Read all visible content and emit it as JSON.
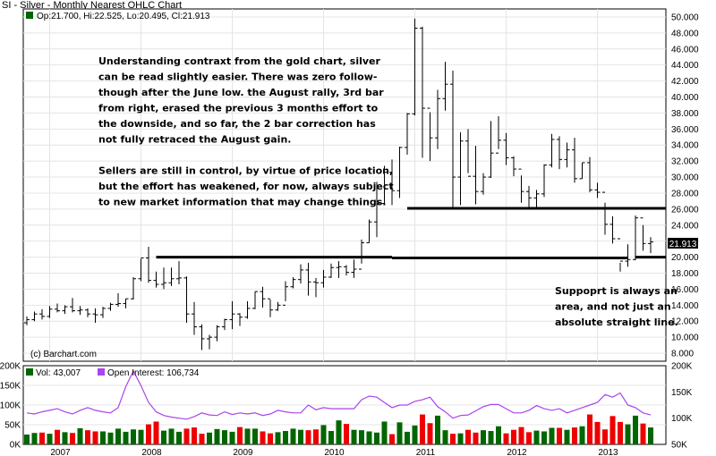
{
  "title": "SI - Silver - Monthly Nearest OHLC Chart",
  "ohlc_summary": "Op:21.700, Hi:22.525, Lo:20.495, Cl:21.913",
  "last_price": "21.913",
  "copyright": "(c) Barchart.com",
  "notes": {
    "main": [
      "Understanding contraxt from the gold chart, silver",
      "can be read slightly easier.  There was zero follow-",
      "though after the June low.  the August rally, 3rd bar",
      "from right, erased the previous 3 months effort to",
      "the downside,  and so far, the 2 bar correction has",
      "not fully retraced the August gain.",
      "",
      "Sellers are still in control, by virtue of price location,",
      "but the effort has weakened, for now,  always subject",
      "to new market information that may change things."
    ],
    "support": [
      "Suppoprt is always an",
      "area, and not just an",
      "absolute straight line."
    ]
  },
  "volume_legend": {
    "vol": "Vol: 43,007",
    "oi": "Open Interest: 106,734"
  },
  "colors": {
    "up": "#006600",
    "down": "#ee0000",
    "oi": "#aa44ee",
    "line": "#000000"
  },
  "chart_data": [
    {
      "type": "ohlc",
      "title": "SI - Silver - Monthly Nearest OHLC Chart",
      "ylim": [
        7,
        51
      ],
      "y_ticks": [
        "8.000",
        "10.000",
        "12.000",
        "14.000",
        "16.000",
        "18.000",
        "20.000",
        "22.000",
        "24.000",
        "26.000",
        "28.000",
        "30.000",
        "32.000",
        "34.000",
        "36.000",
        "38.000",
        "40.000",
        "42.000",
        "44.000",
        "46.000",
        "48.000",
        "50.000"
      ],
      "x_labels": [
        "2007",
        "2008",
        "2009",
        "2010",
        "2011",
        "2012",
        "2013"
      ],
      "start": "2006-10",
      "bars": [
        [
          11.8,
          12.6,
          11.5,
          12.2
        ],
        [
          12.2,
          13.2,
          12.0,
          12.9
        ],
        [
          12.9,
          13.5,
          12.2,
          12.6
        ],
        [
          12.6,
          13.9,
          12.4,
          13.5
        ],
        [
          13.5,
          14.2,
          13.1,
          13.3
        ],
        [
          13.3,
          14.0,
          12.9,
          13.8
        ],
        [
          13.8,
          14.9,
          13.1,
          13.3
        ],
        [
          13.3,
          13.9,
          12.8,
          13.4
        ],
        [
          13.4,
          13.6,
          12.5,
          12.9
        ],
        [
          12.9,
          13.6,
          11.8,
          12.8
        ],
        [
          12.8,
          13.8,
          12.4,
          13.6
        ],
        [
          13.6,
          14.3,
          13.3,
          14.1
        ],
        [
          14.1,
          15.5,
          13.8,
          14.2
        ],
        [
          14.2,
          14.8,
          13.6,
          14.8
        ],
        [
          14.8,
          17.5,
          14.7,
          17.3
        ],
        [
          17.3,
          19.8,
          17.0,
          19.9
        ],
        [
          19.9,
          21.3,
          16.8,
          17.1
        ],
        [
          17.1,
          18.2,
          16.2,
          16.6
        ],
        [
          16.6,
          18.7,
          16.0,
          16.8
        ],
        [
          16.8,
          18.7,
          16.4,
          17.3
        ],
        [
          17.3,
          19.5,
          16.6,
          17.4
        ],
        [
          17.4,
          17.6,
          11.8,
          12.9
        ],
        [
          12.9,
          14.4,
          10.3,
          11.3
        ],
        [
          11.3,
          11.6,
          8.4,
          9.8
        ],
        [
          9.8,
          10.3,
          8.5,
          10.0
        ],
        [
          10.0,
          11.5,
          9.5,
          11.3
        ],
        [
          11.3,
          12.3,
          10.9,
          12.2
        ],
        [
          12.2,
          14.5,
          11.0,
          12.9
        ],
        [
          12.9,
          13.0,
          11.4,
          12.5
        ],
        [
          12.5,
          14.5,
          12.3,
          13.6
        ],
        [
          13.6,
          15.7,
          13.5,
          15.7
        ],
        [
          15.7,
          16.3,
          13.7,
          14.8
        ],
        [
          14.8,
          14.7,
          12.5,
          13.4
        ],
        [
          13.4,
          14.4,
          13.3,
          14.0
        ],
        [
          14.0,
          17.0,
          14.5,
          16.3
        ],
        [
          16.3,
          17.5,
          16.1,
          17.2
        ],
        [
          17.2,
          19.1,
          16.7,
          18.4
        ],
        [
          18.4,
          19.3,
          15.2,
          16.9
        ],
        [
          16.9,
          17.4,
          15.0,
          16.8
        ],
        [
          16.8,
          18.4,
          16.2,
          17.5
        ],
        [
          17.5,
          19.2,
          17.4,
          18.7
        ],
        [
          18.7,
          19.5,
          17.4,
          18.8
        ],
        [
          18.8,
          19.0,
          17.7,
          18.1
        ],
        [
          18.1,
          19.7,
          17.4,
          18.5
        ],
        [
          18.5,
          22.2,
          19.2,
          21.8
        ],
        [
          21.8,
          24.7,
          21.8,
          24.4
        ],
        [
          24.4,
          29.4,
          22.5,
          26.7
        ],
        [
          26.7,
          31.4,
          26.6,
          30.6
        ],
        [
          30.6,
          32.2,
          26.5,
          28.3
        ],
        [
          28.3,
          33.8,
          27.4,
          33.7
        ],
        [
          33.7,
          38.0,
          32.8,
          37.9
        ],
        [
          37.9,
          49.8,
          37.7,
          48.6
        ],
        [
          48.6,
          48.8,
          32.4,
          38.6
        ],
        [
          38.6,
          38.1,
          32.0,
          34.9
        ],
        [
          34.9,
          40.9,
          33.5,
          39.8
        ],
        [
          39.8,
          44.4,
          38.3,
          41.6
        ],
        [
          41.6,
          43.3,
          26.1,
          30.0
        ],
        [
          30.0,
          35.6,
          26.5,
          34.5
        ],
        [
          34.5,
          36.0,
          30.5,
          30.1
        ],
        [
          30.1,
          33.9,
          26.6,
          28.2
        ],
        [
          28.2,
          30.5,
          27.8,
          30.0
        ],
        [
          30.0,
          37.0,
          29.9,
          33.0
        ],
        [
          33.0,
          37.6,
          33.5,
          34.6
        ],
        [
          34.6,
          35.5,
          31.5,
          32.4
        ],
        [
          32.4,
          32.6,
          30.1,
          31.0
        ],
        [
          31.0,
          30.2,
          26.8,
          28.2
        ],
        [
          28.2,
          28.9,
          26.1,
          27.4
        ],
        [
          27.4,
          28.4,
          26.1,
          27.9
        ],
        [
          27.9,
          31.6,
          27.5,
          31.5
        ],
        [
          31.5,
          35.4,
          31.2,
          34.7
        ],
        [
          34.7,
          35.1,
          31.0,
          32.2
        ],
        [
          32.2,
          34.3,
          31.2,
          33.4
        ],
        [
          33.4,
          34.9,
          29.3,
          29.8
        ],
        [
          29.8,
          31.8,
          29.8,
          31.8
        ],
        [
          31.8,
          32.5,
          28.1,
          28.4
        ],
        [
          28.4,
          29.3,
          27.4,
          28.1
        ],
        [
          28.1,
          26.8,
          22.8,
          24.1
        ],
        [
          24.1,
          25.1,
          21.7,
          22.3
        ],
        [
          22.3,
          19.3,
          18.2,
          19.5
        ],
        [
          19.5,
          21.6,
          18.8,
          19.7
        ],
        [
          19.7,
          25.2,
          19.6,
          24.9
        ],
        [
          24.9,
          24.0,
          20.8,
          21.7
        ],
        [
          21.7,
          22.5,
          20.5,
          21.9
        ]
      ],
      "support_lines": [
        {
          "x_start": "2008-03",
          "x_end": "2010-10",
          "y": 20.0
        },
        {
          "x_start": "2010-10",
          "x_end": "2013-05",
          "y": 19.9
        },
        {
          "x_start": "2010-12",
          "x_end": "2013-10",
          "y": 26.1
        },
        {
          "x_start": "2013-06",
          "x_end": "2013-10",
          "y": 20.0
        }
      ]
    },
    {
      "type": "bar",
      "title": "Vol / Open Interest",
      "ylim_left": [
        0,
        200000
      ],
      "y_ticks_left": [
        "0K",
        "50K",
        "100K",
        "150K",
        "200K"
      ],
      "y_ticks_right": [
        "50K",
        "100K",
        "150K",
        "200K"
      ],
      "series": [
        {
          "name": "Vol",
          "values": [
            25,
            29,
            30,
            27,
            37,
            31,
            29,
            41,
            36,
            33,
            33,
            30,
            40,
            32,
            38,
            37,
            51,
            58,
            35,
            40,
            32,
            40,
            43,
            27,
            30,
            39,
            36,
            32,
            44,
            40,
            40,
            33,
            28,
            31,
            34,
            40,
            37,
            36,
            38,
            49,
            34,
            61,
            52,
            37,
            36,
            33,
            30,
            58,
            26,
            56,
            32,
            48,
            76,
            54,
            73,
            36,
            27,
            28,
            37,
            30,
            36,
            34,
            46,
            28,
            37,
            44,
            31,
            35,
            33,
            42,
            42,
            37,
            43,
            46,
            76,
            57,
            38,
            72,
            57,
            51,
            73,
            53,
            43
          ]
        },
        {
          "name": "Open Interest",
          "values": [
            110,
            108,
            112,
            115,
            118,
            112,
            108,
            115,
            120,
            115,
            112,
            110,
            120,
            160,
            190,
            162,
            130,
            112,
            105,
            102,
            100,
            98,
            103,
            110,
            106,
            105,
            112,
            107,
            110,
            108,
            110,
            105,
            108,
            115,
            112,
            110,
            110,
            125,
            116,
            120,
            118,
            118,
            118,
            118,
            135,
            142,
            140,
            130,
            120,
            125,
            125,
            132,
            135,
            140,
            122,
            112,
            100,
            105,
            106,
            114,
            122,
            126,
            126,
            118,
            110,
            110,
            115,
            124,
            118,
            115,
            118,
            110,
            115,
            120,
            125,
            130,
            145,
            140,
            148,
            125,
            120,
            110,
            106
          ]
        }
      ],
      "x_labels": [
        "2007",
        "2008",
        "2009",
        "2010",
        "2011",
        "2012",
        "2013"
      ]
    }
  ]
}
